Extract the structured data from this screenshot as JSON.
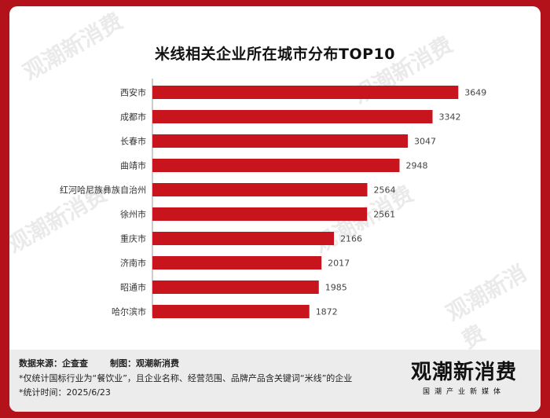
{
  "title": "米线相关企业所在城市分布TOP10",
  "chart_data": {
    "type": "bar",
    "orientation": "horizontal",
    "title": "米线相关企业所在城市分布TOP10",
    "categories": [
      "西安市",
      "成都市",
      "长春市",
      "曲靖市",
      "红河哈尼族彝族自治州",
      "徐州市",
      "重庆市",
      "济南市",
      "昭通市",
      "哈尔滨市"
    ],
    "values": [
      3649,
      3342,
      3047,
      2948,
      2564,
      2561,
      2166,
      2017,
      1985,
      1872
    ],
    "xlim": [
      0,
      3800
    ],
    "grid": false,
    "bar_color": "#c8141d"
  },
  "footer": {
    "source": "数据来源：企查查",
    "maker": "制图：观潮新消费",
    "note1": "*仅统计国标行业为“餐饮业”，且企业名称、经营范围、品牌产品含关键词“米线”的企业",
    "note2": "*统计时间：2025/6/23"
  },
  "logo": {
    "main": "观潮新消费",
    "sub": "国潮产业新媒体",
    "url": "tidesight.com"
  },
  "colors": {
    "border": "#b3121b",
    "bar": "#c8141d",
    "footer_bg": "#ececec"
  }
}
